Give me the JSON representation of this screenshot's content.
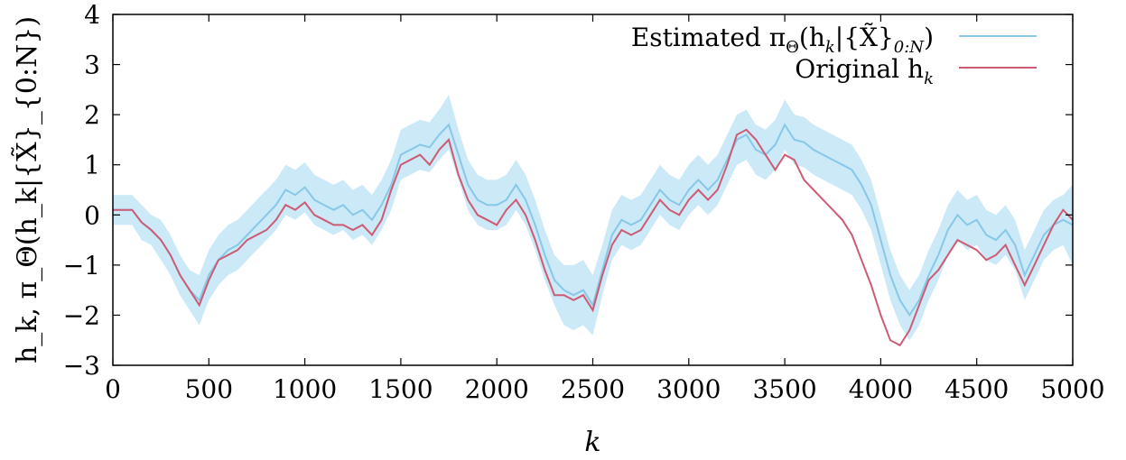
{
  "chart_data": {
    "type": "line",
    "xlabel": "k",
    "ylabel": "h_k, π_Θ(h_k|{X̃}_{0:N})",
    "xlim": [
      0,
      5000
    ],
    "ylim": [
      -3,
      4
    ],
    "x_ticks": [
      "0",
      "500",
      "1000",
      "1500",
      "2000",
      "2500",
      "3000",
      "3500",
      "4000",
      "4500",
      "5000"
    ],
    "y_ticks": [
      "−3",
      "−2",
      "−1",
      "0",
      "1",
      "2",
      "3",
      "4"
    ],
    "grid": false,
    "legend_position": "top-right",
    "colors": {
      "estimated": "#87c8e8",
      "band": "#cce9f7",
      "original": "#cc5b73"
    },
    "x": [
      0,
      100,
      150,
      200,
      250,
      300,
      350,
      400,
      450,
      500,
      550,
      600,
      650,
      700,
      750,
      800,
      850,
      900,
      950,
      1000,
      1050,
      1100,
      1150,
      1200,
      1250,
      1300,
      1350,
      1400,
      1450,
      1500,
      1550,
      1600,
      1650,
      1700,
      1750,
      1800,
      1850,
      1900,
      1950,
      2000,
      2050,
      2100,
      2150,
      2200,
      2250,
      2300,
      2350,
      2400,
      2450,
      2500,
      2550,
      2600,
      2650,
      2700,
      2750,
      2800,
      2850,
      2900,
      2950,
      3000,
      3050,
      3100,
      3150,
      3200,
      3250,
      3300,
      3350,
      3400,
      3450,
      3500,
      3550,
      3600,
      3650,
      3700,
      3750,
      3800,
      3850,
      3900,
      3950,
      4000,
      4050,
      4100,
      4150,
      4200,
      4250,
      4300,
      4350,
      4400,
      4450,
      4500,
      4550,
      4600,
      4650,
      4700,
      4750,
      4800,
      4850,
      4900,
      4950,
      5000
    ],
    "series": [
      {
        "name": "Estimated π_Θ(h_k|{X̃}_{0:N})",
        "values": [
          0.1,
          0.1,
          -0.15,
          -0.3,
          -0.5,
          -0.8,
          -1.2,
          -1.5,
          -1.7,
          -1.2,
          -0.9,
          -0.7,
          -0.6,
          -0.4,
          -0.2,
          0.0,
          0.2,
          0.5,
          0.4,
          0.55,
          0.3,
          0.2,
          0.1,
          0.2,
          0.0,
          0.1,
          -0.1,
          0.2,
          0.6,
          1.2,
          1.3,
          1.4,
          1.35,
          1.6,
          1.8,
          1.2,
          0.6,
          0.3,
          0.2,
          0.2,
          0.3,
          0.6,
          0.3,
          -0.2,
          -0.8,
          -1.3,
          -1.5,
          -1.6,
          -1.5,
          -1.8,
          -1.1,
          -0.4,
          -0.1,
          -0.2,
          -0.1,
          0.2,
          0.5,
          0.3,
          0.2,
          0.5,
          0.7,
          0.5,
          0.7,
          1.1,
          1.5,
          1.6,
          1.3,
          1.2,
          1.4,
          1.8,
          1.5,
          1.45,
          1.3,
          1.2,
          1.1,
          1.0,
          0.9,
          0.6,
          0.2,
          -0.5,
          -1.2,
          -1.7,
          -2.0,
          -1.7,
          -1.2,
          -0.8,
          -0.3,
          0.0,
          -0.2,
          -0.1,
          -0.4,
          -0.5,
          -0.3,
          -0.6,
          -1.2,
          -0.8,
          -0.4,
          -0.2,
          -0.1,
          -0.2
        ],
        "band_lower": [
          -0.2,
          -0.2,
          -0.5,
          -0.6,
          -0.9,
          -1.2,
          -1.6,
          -1.9,
          -2.2,
          -1.7,
          -1.4,
          -1.2,
          -1.1,
          -0.9,
          -0.7,
          -0.5,
          -0.3,
          0.0,
          -0.1,
          0.05,
          -0.2,
          -0.3,
          -0.4,
          -0.3,
          -0.5,
          -0.4,
          -0.6,
          -0.3,
          0.1,
          0.7,
          0.8,
          0.9,
          0.85,
          1.1,
          1.3,
          0.7,
          0.1,
          -0.2,
          -0.3,
          -0.3,
          -0.2,
          0.1,
          -0.2,
          -0.7,
          -1.3,
          -1.8,
          -2.2,
          -2.3,
          -2.2,
          -2.4,
          -1.6,
          -0.9,
          -0.6,
          -0.7,
          -0.6,
          -0.3,
          0.0,
          -0.2,
          -0.3,
          0.0,
          0.2,
          0.0,
          0.2,
          0.6,
          1.0,
          1.1,
          0.8,
          0.7,
          0.9,
          1.3,
          1.0,
          0.95,
          0.8,
          0.7,
          0.6,
          0.5,
          0.4,
          0.1,
          -0.3,
          -1.0,
          -1.7,
          -2.2,
          -2.5,
          -2.2,
          -1.7,
          -1.3,
          -0.8,
          -0.5,
          -0.7,
          -0.6,
          -0.9,
          -1.0,
          -0.8,
          -1.1,
          -1.7,
          -1.3,
          -0.9,
          -0.7,
          -0.6,
          -1.0
        ],
        "band_upper": [
          0.4,
          0.4,
          0.2,
          0.0,
          -0.1,
          -0.4,
          -0.8,
          -1.1,
          -1.2,
          -0.7,
          -0.4,
          -0.2,
          -0.1,
          0.1,
          0.3,
          0.5,
          0.7,
          1.0,
          0.9,
          1.05,
          0.8,
          0.7,
          0.6,
          0.7,
          0.5,
          0.6,
          0.4,
          0.7,
          1.1,
          1.7,
          1.8,
          1.9,
          1.85,
          2.1,
          2.4,
          1.7,
          1.1,
          0.8,
          0.7,
          0.7,
          0.8,
          1.1,
          0.8,
          0.3,
          -0.3,
          -0.8,
          -1.0,
          -1.0,
          -0.9,
          -1.2,
          -0.6,
          0.1,
          0.4,
          0.3,
          0.4,
          0.7,
          1.0,
          0.8,
          0.7,
          1.0,
          1.2,
          1.0,
          1.2,
          1.6,
          2.0,
          2.1,
          1.8,
          1.7,
          1.9,
          2.3,
          2.0,
          1.95,
          1.8,
          1.7,
          1.6,
          1.5,
          1.4,
          1.1,
          0.7,
          0.0,
          -0.7,
          -1.2,
          -1.5,
          -1.2,
          -0.7,
          -0.3,
          0.2,
          0.5,
          0.3,
          0.4,
          0.1,
          0.0,
          0.2,
          -0.1,
          -0.7,
          -0.3,
          0.1,
          0.3,
          0.4,
          0.6
        ]
      },
      {
        "name": "Original h_k",
        "values": [
          0.1,
          0.1,
          -0.15,
          -0.3,
          -0.5,
          -0.8,
          -1.2,
          -1.5,
          -1.8,
          -1.3,
          -0.9,
          -0.8,
          -0.7,
          -0.5,
          -0.4,
          -0.3,
          -0.1,
          0.2,
          0.1,
          0.25,
          0.0,
          -0.1,
          -0.2,
          -0.2,
          -0.3,
          -0.2,
          -0.4,
          -0.1,
          0.5,
          1.0,
          1.1,
          1.2,
          1.0,
          1.3,
          1.5,
          0.8,
          0.3,
          0.0,
          -0.1,
          -0.2,
          0.1,
          0.3,
          0.0,
          -0.5,
          -1.1,
          -1.6,
          -1.6,
          -1.7,
          -1.6,
          -1.9,
          -1.2,
          -0.6,
          -0.3,
          -0.4,
          -0.3,
          0.0,
          0.3,
          0.1,
          0.0,
          0.3,
          0.5,
          0.3,
          0.5,
          1.0,
          1.6,
          1.7,
          1.5,
          1.2,
          0.9,
          1.2,
          1.1,
          0.7,
          0.5,
          0.3,
          0.1,
          -0.1,
          -0.4,
          -0.9,
          -1.4,
          -2.0,
          -2.5,
          -2.6,
          -2.3,
          -1.8,
          -1.3,
          -1.1,
          -0.8,
          -0.5,
          -0.6,
          -0.7,
          -0.9,
          -0.8,
          -0.6,
          -1.0,
          -1.4,
          -1.0,
          -0.6,
          -0.2,
          0.1,
          -0.1
        ]
      }
    ],
    "legend": [
      {
        "label_main": "Estimated π",
        "label_sub": "Θ",
        "label_rest": "(h",
        "label_sub2": "k",
        "label_tail": "|{X̃}",
        "label_sub3": "0:N",
        "label_end": ")"
      },
      {
        "label_main": "Original h",
        "label_sub": "k"
      }
    ]
  }
}
